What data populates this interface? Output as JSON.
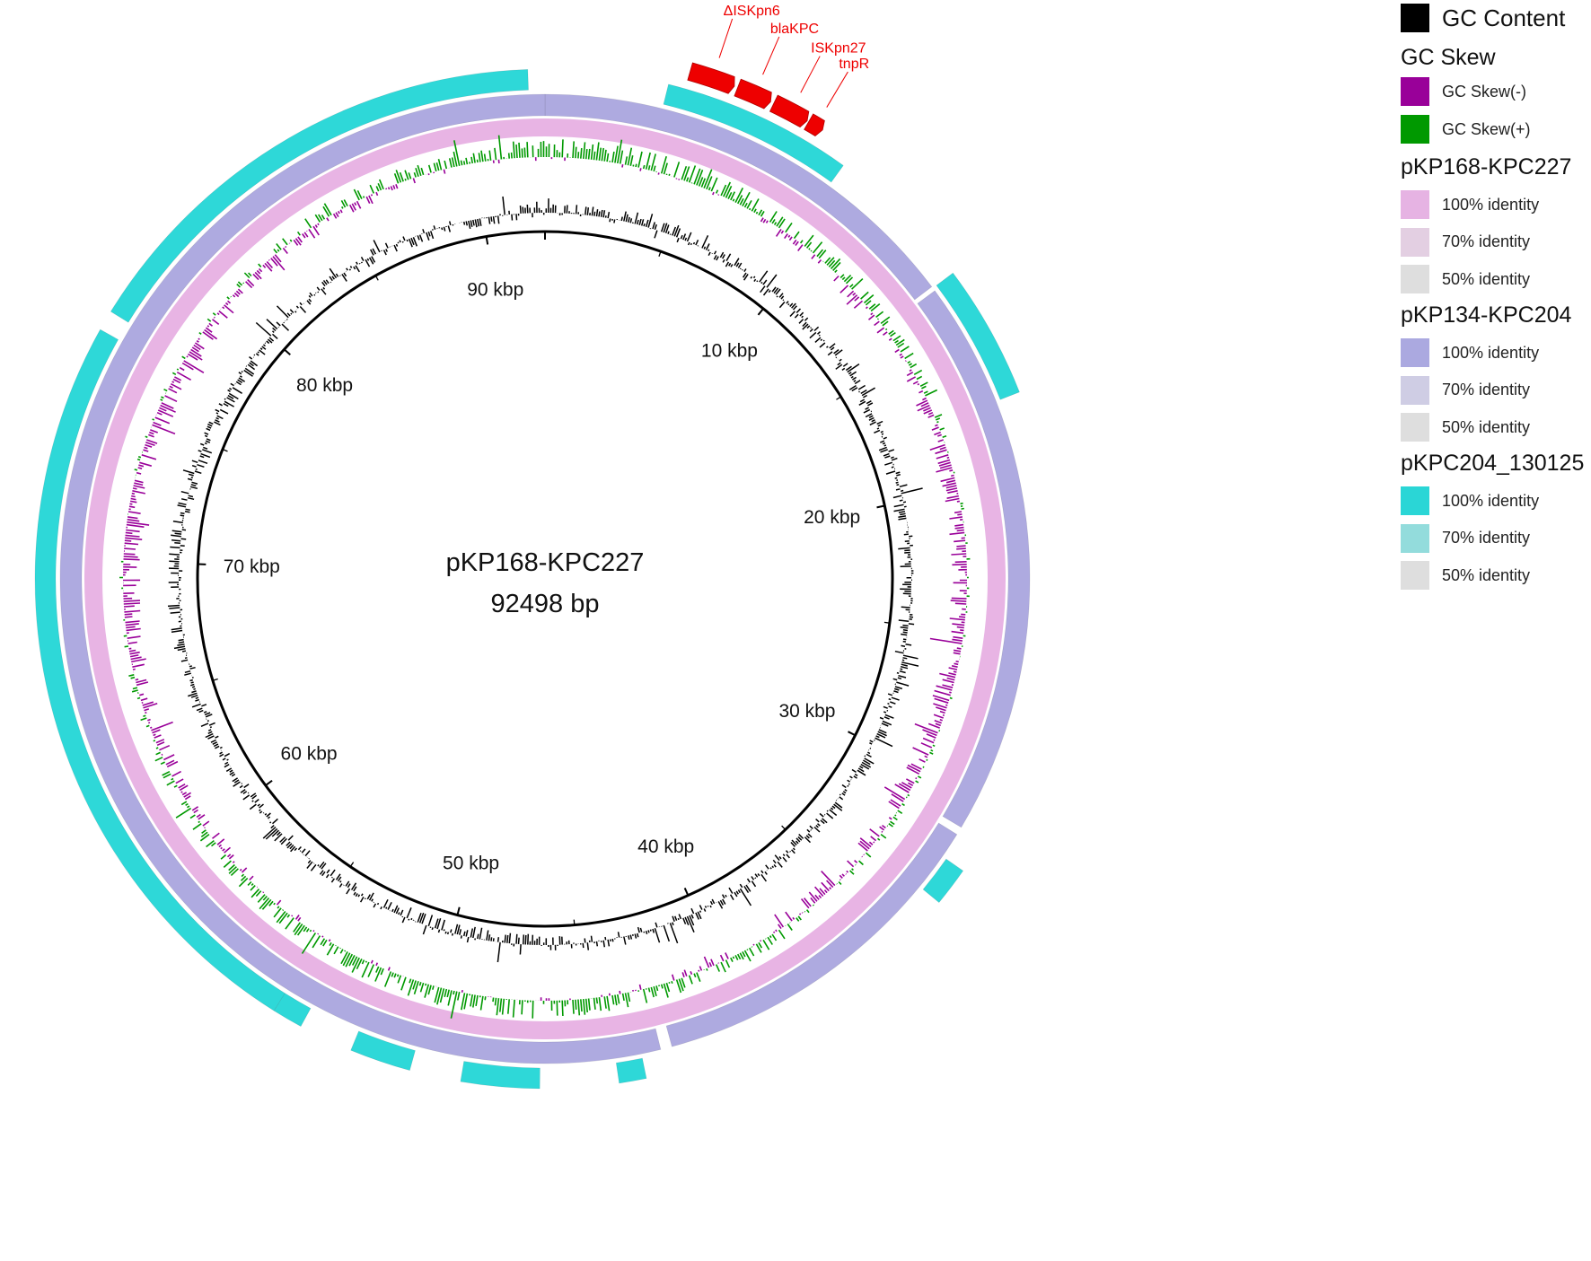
{
  "plasmid": {
    "name": "pKP168-KPC227",
    "length_label": "92498 bp",
    "length_bp": 92498
  },
  "colors": {
    "gc_content": "#000000",
    "gc_skew_neg": "#990099",
    "gc_skew_pos": "#009900",
    "annotation": "#ee0000",
    "ring_pKP168": "#e8b4e4",
    "ring_pKP134": "#aeaae0",
    "ring_pKPC204": "#2ed8d8"
  },
  "scale_labels": [
    {
      "text": "10 kbp",
      "bp": 10000
    },
    {
      "text": "20 kbp",
      "bp": 20000
    },
    {
      "text": "30 kbp",
      "bp": 30000
    },
    {
      "text": "40 kbp",
      "bp": 40000
    },
    {
      "text": "50 kbp",
      "bp": 50000
    },
    {
      "text": "60 kbp",
      "bp": 60000
    },
    {
      "text": "70 kbp",
      "bp": 70000
    },
    {
      "text": "80 kbp",
      "bp": 80000
    },
    {
      "text": "90 kbp",
      "bp": 90000
    }
  ],
  "annotations": [
    {
      "label": "ΔISKpn6",
      "start_bp": 4100,
      "end_bp": 5400
    },
    {
      "label": "blaKPC",
      "start_bp": 5500,
      "end_bp": 6500
    },
    {
      "label": "ISKpn27",
      "start_bp": 6600,
      "end_bp": 7650
    },
    {
      "label": "tnpR",
      "start_bp": 7700,
      "end_bp": 8150
    }
  ],
  "rings": [
    {
      "name": "pKP168-KPC227",
      "segments": [
        [
          0,
          92498
        ]
      ]
    },
    {
      "name": "pKP134-KPC204",
      "segments": [
        [
          0,
          13600
        ],
        [
          13750,
          31050
        ],
        [
          31300,
          42350
        ],
        [
          42700,
          92498
        ]
      ]
    },
    {
      "name": "pKPC204_130125",
      "segments": [
        [
          3600,
          9200
        ],
        [
          13650,
          17600
        ],
        [
          32100,
          33250
        ],
        [
          43300,
          44100
        ],
        [
          46400,
          48700
        ],
        [
          50200,
          52000
        ],
        [
          53600,
          54500
        ],
        [
          54500,
          76900
        ],
        [
          77500,
          92000
        ]
      ]
    }
  ],
  "legend": {
    "gc_content": {
      "label": "GC Content",
      "color": "#000000"
    },
    "gc_skew": {
      "title": "GC Skew",
      "items": [
        {
          "label": "GC Skew(-)",
          "color": "#990099"
        },
        {
          "label": "GC Skew(+)",
          "color": "#009900"
        }
      ]
    },
    "groups": [
      {
        "title": "pKP168-KPC227",
        "items": [
          {
            "label": "100% identity",
            "color": "#e6b3e3"
          },
          {
            "label": "70% identity",
            "color": "#e3cfe2"
          },
          {
            "label": "50% identity",
            "color": "#dedede"
          }
        ]
      },
      {
        "title": "pKP134-KPC204",
        "items": [
          {
            "label": "100% identity",
            "color": "#aba9e0"
          },
          {
            "label": "70% identity",
            "color": "#cfcde4"
          },
          {
            "label": "50% identity",
            "color": "#dedede"
          }
        ]
      },
      {
        "title": "pKPC204_130125",
        "items": [
          {
            "label": "100% identity",
            "color": "#2ad6d6"
          },
          {
            "label": "70% identity",
            "color": "#93dcdc"
          },
          {
            "label": "50% identity",
            "color": "#dedede"
          }
        ]
      }
    ]
  }
}
